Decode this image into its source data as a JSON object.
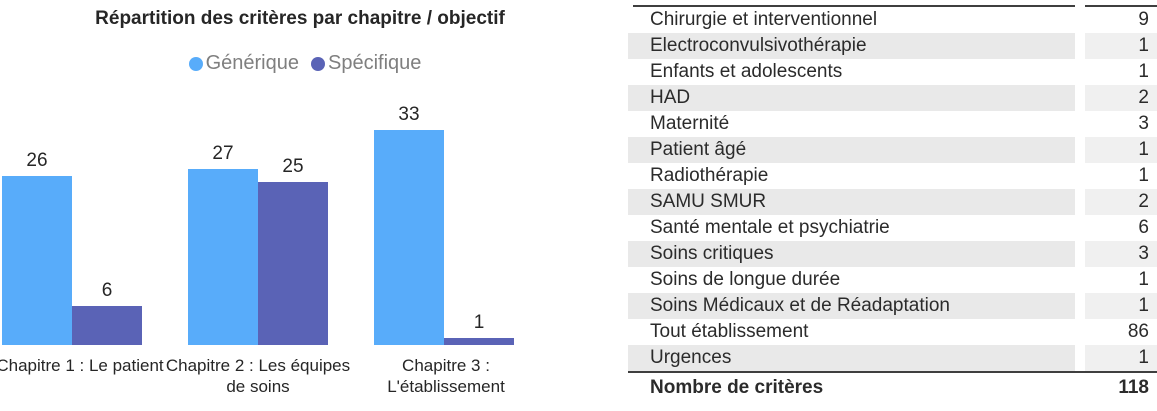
{
  "chart": {
    "title": "Répartition des critères par chapitre / objectif"
  },
  "chart_data": {
    "type": "bar",
    "title": "Répartition des critères par chapitre / objectif",
    "categories": [
      "Chapitre 1 : Le patient",
      "Chapitre 2 : Les équipes de soins",
      "Chapitre 3 : L'établissement"
    ],
    "series": [
      {
        "name": "Générique",
        "color": "#58ACFA",
        "values": [
          26,
          27,
          33
        ]
      },
      {
        "name": "Spécifique",
        "color": "#5A63B6",
        "values": [
          6,
          25,
          1
        ]
      }
    ],
    "ylim": [
      0,
      35
    ],
    "data_labels": true,
    "legend_position": "top",
    "grid": false
  },
  "table": {
    "rows": [
      {
        "label": "Chirurgie et interventionnel",
        "value": "9"
      },
      {
        "label": "Electroconvulsivothérapie",
        "value": "1"
      },
      {
        "label": "Enfants et adolescents",
        "value": "1"
      },
      {
        "label": "HAD",
        "value": "2"
      },
      {
        "label": "Maternité",
        "value": "3"
      },
      {
        "label": "Patient âgé",
        "value": "1"
      },
      {
        "label": "Radiothérapie",
        "value": "1"
      },
      {
        "label": "SAMU SMUR",
        "value": "2"
      },
      {
        "label": "Santé mentale et psychiatrie",
        "value": "6"
      },
      {
        "label": "Soins critiques",
        "value": "3"
      },
      {
        "label": "Soins de longue durée",
        "value": "1"
      },
      {
        "label": "Soins Médicaux et de Réadaptation",
        "value": "1"
      },
      {
        "label": "Tout établissement",
        "value": "86"
      },
      {
        "label": "Urgences",
        "value": "1"
      }
    ],
    "total_row": {
      "label": "Nombre de critères",
      "value": "118"
    }
  },
  "colors": {
    "generique": "#58ACFA",
    "specifique": "#5A63B6",
    "row_alt": "#e9e9e9",
    "border_dark": "#3f3f3f",
    "legend_text": "#7f7f7f",
    "text": "#262626"
  }
}
